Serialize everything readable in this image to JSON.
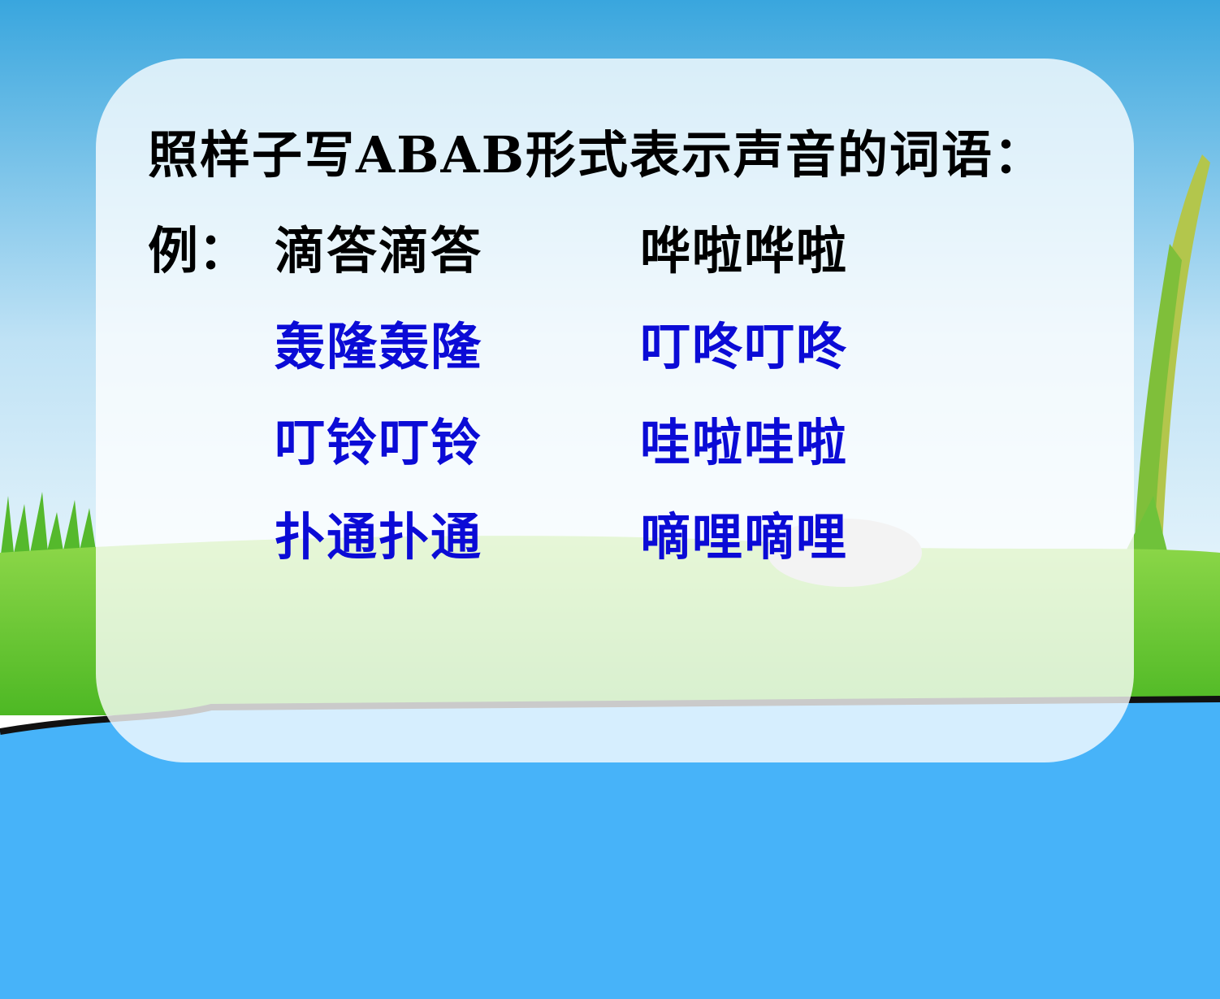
{
  "slide": {
    "title": "照样子写ABAB形式表示声音的词语：",
    "example_label": "例：",
    "examples": [
      "滴答滴答",
      "哗啦哗啦"
    ],
    "answers_left": [
      "轰隆轰隆",
      "叮铃叮铃",
      "扑通扑通"
    ],
    "answers_right": [
      "叮咚叮咚",
      "哇啦哇啦",
      "嘀哩嘀哩"
    ]
  },
  "colors": {
    "sky_top": "#3aa8e0",
    "sky_bottom": "#e8f4fb",
    "grass": "#5cc12e",
    "water": "#47b3f9",
    "answer_text": "#0b0bd6",
    "example_text": "#000000"
  }
}
